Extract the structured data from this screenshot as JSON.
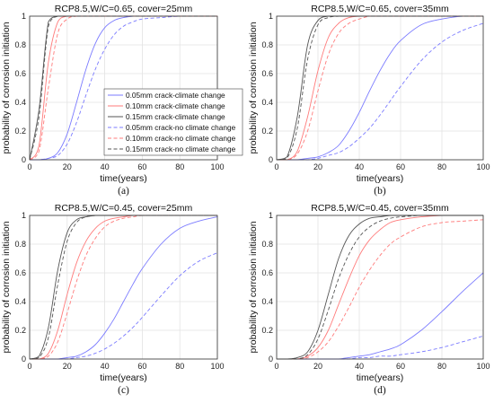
{
  "chart_data": [
    {
      "type": "line",
      "panel_label": "(a)",
      "title": "RCP8.5,W/C=0.65, cover=25mm",
      "xlabel": "time(years)",
      "ylabel": "probability of corrosion initiation",
      "xlim": [
        0,
        100
      ],
      "ylim": [
        0,
        1
      ],
      "xticks": [
        "0",
        "20",
        "40",
        "60",
        "80",
        "100"
      ],
      "yticks": [
        "0",
        "0.2",
        "0.4",
        "0.6",
        "0.8",
        "1"
      ],
      "grid": true,
      "legend": "inside",
      "x": [
        0,
        5,
        10,
        15,
        20,
        25,
        30,
        35,
        40,
        45,
        50,
        55,
        60,
        70,
        80,
        90,
        100
      ],
      "series": [
        {
          "name": "0.05mm crack-climate change",
          "color": "#7b7bff",
          "dash": false,
          "values": [
            0,
            0.0,
            0.01,
            0.05,
            0.18,
            0.4,
            0.63,
            0.81,
            0.92,
            0.97,
            0.99,
            1,
            1,
            1,
            1,
            1,
            1
          ]
        },
        {
          "name": "0.10mm crack-climate change",
          "color": "#ff7b7b",
          "dash": false,
          "values": [
            0,
            0.1,
            0.68,
            0.96,
            1,
            1,
            1,
            1,
            1,
            1,
            1,
            1,
            1,
            1,
            1,
            1,
            1
          ]
        },
        {
          "name": "0.15mm crack-climate change",
          "color": "#555555",
          "dash": false,
          "values": [
            0,
            0.35,
            0.96,
            1,
            1,
            1,
            1,
            1,
            1,
            1,
            1,
            1,
            1,
            1,
            1,
            1,
            1
          ]
        },
        {
          "name": "0.05mm crack-no climate change",
          "color": "#7b7bff",
          "dash": true,
          "values": [
            0,
            0.0,
            0.01,
            0.03,
            0.11,
            0.26,
            0.45,
            0.63,
            0.77,
            0.87,
            0.93,
            0.96,
            0.98,
            0.99,
            1,
            1,
            1
          ]
        },
        {
          "name": "0.10mm crack-no climate change",
          "color": "#ff7b7b",
          "dash": true,
          "values": [
            0,
            0.06,
            0.5,
            0.88,
            0.98,
            1,
            1,
            1,
            1,
            1,
            1,
            1,
            1,
            1,
            1,
            1,
            1
          ]
        },
        {
          "name": "0.15mm crack-no climate change",
          "color": "#555555",
          "dash": true,
          "values": [
            0,
            0.3,
            0.93,
            1,
            1,
            1,
            1,
            1,
            1,
            1,
            1,
            1,
            1,
            1,
            1,
            1,
            1
          ]
        }
      ]
    },
    {
      "type": "line",
      "panel_label": "(b)",
      "title": "RCP8.5,W/C=0.65, cover=35mm",
      "xlabel": "time(years)",
      "ylabel": "probability of corrosion initiation",
      "xlim": [
        0,
        100
      ],
      "ylim": [
        0,
        1
      ],
      "xticks": [
        "0",
        "20",
        "40",
        "60",
        "80",
        "100"
      ],
      "yticks": [
        "0",
        "0.2",
        "0.4",
        "0.6",
        "0.8",
        "1"
      ],
      "grid": true,
      "x": [
        0,
        5,
        10,
        15,
        20,
        25,
        30,
        35,
        40,
        45,
        50,
        55,
        60,
        70,
        80,
        90,
        100
      ],
      "series": [
        {
          "name": "0.05mm crack-climate change",
          "color": "#7b7bff",
          "dash": false,
          "values": [
            0,
            0,
            0.0,
            0.01,
            0.02,
            0.05,
            0.1,
            0.2,
            0.33,
            0.48,
            0.62,
            0.74,
            0.83,
            0.94,
            0.98,
            1,
            1
          ]
        },
        {
          "name": "0.10mm crack-climate change",
          "color": "#ff7b7b",
          "dash": false,
          "values": [
            0,
            0.0,
            0.06,
            0.3,
            0.62,
            0.85,
            0.95,
            0.99,
            1,
            1,
            1,
            1,
            1,
            1,
            1,
            1,
            1
          ]
        },
        {
          "name": "0.15mm crack-climate change",
          "color": "#555555",
          "dash": false,
          "values": [
            0,
            0.02,
            0.3,
            0.8,
            0.97,
            1,
            1,
            1,
            1,
            1,
            1,
            1,
            1,
            1,
            1,
            1,
            1
          ]
        },
        {
          "name": "0.05mm crack-no climate change",
          "color": "#7b7bff",
          "dash": true,
          "values": [
            0,
            0,
            0.0,
            0.0,
            0.01,
            0.03,
            0.05,
            0.09,
            0.15,
            0.22,
            0.31,
            0.41,
            0.51,
            0.69,
            0.82,
            0.9,
            0.95
          ]
        },
        {
          "name": "0.10mm crack-no climate change",
          "color": "#ff7b7b",
          "dash": true,
          "values": [
            0,
            0.0,
            0.04,
            0.2,
            0.48,
            0.73,
            0.88,
            0.95,
            0.98,
            1,
            1,
            1,
            1,
            1,
            1,
            1,
            1
          ]
        },
        {
          "name": "0.15mm crack-no climate change",
          "color": "#555555",
          "dash": true,
          "values": [
            0,
            0.01,
            0.22,
            0.7,
            0.94,
            0.99,
            1,
            1,
            1,
            1,
            1,
            1,
            1,
            1,
            1,
            1,
            1
          ]
        }
      ]
    },
    {
      "type": "line",
      "panel_label": "(c)",
      "title": "RCP8.5,W/C=0.45, cover=25mm",
      "xlabel": "time(years)",
      "ylabel": "probability of corrosion initiation",
      "xlim": [
        0,
        100
      ],
      "ylim": [
        0,
        1
      ],
      "xticks": [
        "0",
        "20",
        "40",
        "60",
        "80",
        "100"
      ],
      "yticks": [
        "0",
        "0.2",
        "0.4",
        "0.6",
        "0.8",
        "1"
      ],
      "grid": true,
      "x": [
        0,
        5,
        10,
        15,
        20,
        25,
        30,
        35,
        40,
        45,
        50,
        55,
        60,
        70,
        80,
        90,
        100
      ],
      "series": [
        {
          "name": "0.05mm crack-climate change",
          "color": "#7b7bff",
          "dash": false,
          "values": [
            0,
            0,
            0.0,
            0.0,
            0.01,
            0.02,
            0.05,
            0.1,
            0.18,
            0.28,
            0.4,
            0.52,
            0.63,
            0.8,
            0.91,
            0.96,
            0.99
          ]
        },
        {
          "name": "0.10mm crack-climate change",
          "color": "#ff7b7b",
          "dash": false,
          "values": [
            0,
            0.0,
            0.04,
            0.2,
            0.45,
            0.67,
            0.82,
            0.91,
            0.96,
            0.98,
            0.99,
            1,
            1,
            1,
            1,
            1,
            1
          ]
        },
        {
          "name": "0.15mm crack-climate change",
          "color": "#555555",
          "dash": false,
          "values": [
            0,
            0.02,
            0.22,
            0.62,
            0.88,
            0.97,
            0.99,
            1,
            1,
            1,
            1,
            1,
            1,
            1,
            1,
            1,
            1
          ]
        },
        {
          "name": "0.05mm crack-no climate change",
          "color": "#7b7bff",
          "dash": true,
          "values": [
            0,
            0,
            0.0,
            0.0,
            0.0,
            0.01,
            0.02,
            0.04,
            0.07,
            0.11,
            0.16,
            0.22,
            0.29,
            0.44,
            0.58,
            0.68,
            0.74
          ]
        },
        {
          "name": "0.10mm crack-no climate change",
          "color": "#ff7b7b",
          "dash": true,
          "values": [
            0,
            0.0,
            0.02,
            0.12,
            0.32,
            0.54,
            0.72,
            0.84,
            0.92,
            0.96,
            0.98,
            0.99,
            1,
            1,
            1,
            1,
            1
          ]
        },
        {
          "name": "0.15mm crack-no climate change",
          "color": "#555555",
          "dash": true,
          "values": [
            0,
            0.01,
            0.15,
            0.52,
            0.82,
            0.95,
            0.99,
            1,
            1,
            1,
            1,
            1,
            1,
            1,
            1,
            1,
            1
          ]
        }
      ]
    },
    {
      "type": "line",
      "panel_label": "(d)",
      "title": "RCP8.5,W/C=0.45, cover=35mm",
      "xlabel": "time(years)",
      "ylabel": "probability of corrosion initiation",
      "xlim": [
        0,
        100
      ],
      "ylim": [
        0,
        1
      ],
      "xticks": [
        "0",
        "20",
        "40",
        "60",
        "80",
        "100"
      ],
      "yticks": [
        "0",
        "0.2",
        "0.4",
        "0.6",
        "0.8",
        "1"
      ],
      "grid": true,
      "x": [
        0,
        5,
        10,
        15,
        20,
        25,
        30,
        35,
        40,
        45,
        50,
        55,
        60,
        70,
        80,
        90,
        100
      ],
      "series": [
        {
          "name": "0.05mm crack-climate change",
          "color": "#7b7bff",
          "dash": false,
          "values": [
            0,
            0,
            0,
            0.0,
            0.0,
            0.0,
            0.0,
            0.01,
            0.02,
            0.03,
            0.05,
            0.07,
            0.1,
            0.2,
            0.33,
            0.47,
            0.6
          ]
        },
        {
          "name": "0.10mm crack-climate change",
          "color": "#ff7b7b",
          "dash": false,
          "values": [
            0,
            0,
            0.0,
            0.02,
            0.08,
            0.2,
            0.38,
            0.56,
            0.72,
            0.83,
            0.9,
            0.95,
            0.97,
            0.99,
            1,
            1,
            1
          ]
        },
        {
          "name": "0.15mm crack-climate change",
          "color": "#555555",
          "dash": false,
          "values": [
            0,
            0,
            0.01,
            0.05,
            0.2,
            0.45,
            0.7,
            0.86,
            0.94,
            0.98,
            0.99,
            1,
            1,
            1,
            1,
            1,
            1
          ]
        },
        {
          "name": "0.05mm crack-no climate change",
          "color": "#7b7bff",
          "dash": true,
          "values": [
            0,
            0,
            0,
            0,
            0.0,
            0.0,
            0.0,
            0.0,
            0.01,
            0.01,
            0.02,
            0.02,
            0.03,
            0.05,
            0.08,
            0.12,
            0.16
          ]
        },
        {
          "name": "0.10mm crack-no climate change",
          "color": "#ff7b7b",
          "dash": true,
          "values": [
            0,
            0,
            0.0,
            0.01,
            0.05,
            0.12,
            0.23,
            0.36,
            0.5,
            0.62,
            0.72,
            0.8,
            0.85,
            0.92,
            0.95,
            0.96,
            0.97
          ]
        },
        {
          "name": "0.15mm crack-no climate change",
          "color": "#555555",
          "dash": true,
          "values": [
            0,
            0,
            0.0,
            0.03,
            0.14,
            0.34,
            0.56,
            0.73,
            0.85,
            0.92,
            0.96,
            0.98,
            0.99,
            1,
            1,
            1,
            1
          ]
        }
      ]
    }
  ]
}
